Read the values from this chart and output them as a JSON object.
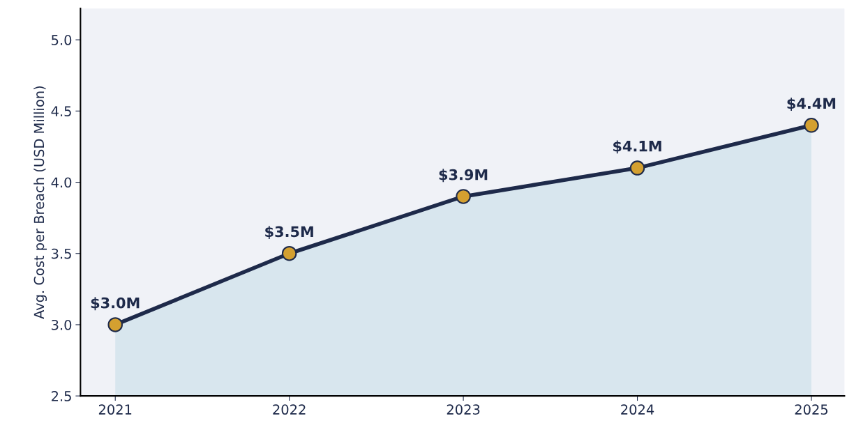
{
  "chart_data": {
    "type": "area",
    "ylabel": "Avg. Cost per Breach (USD Million)",
    "x": [
      2021,
      2022,
      2023,
      2024,
      2025
    ],
    "series": [
      {
        "color": "#1e2a4a",
        "values": [
          3.0,
          3.5,
          3.9,
          4.1,
          4.4
        ],
        "value_labels": [
          "$3.0M",
          "$3.5M",
          "$3.9M",
          "$4.1M",
          "$4.4M"
        ]
      }
    ],
    "xlim": [
      2020.8,
      2025.19
    ],
    "xticks": [
      2021,
      2022,
      2023,
      2024,
      2025
    ],
    "ylim": [
      2.5,
      5.22
    ],
    "yticks": [
      2.5,
      {
        "value": 3,
        "label": "3.0"
      },
      3.5,
      {
        "value": 4,
        "label": "4.0"
      },
      4.5,
      {
        "value": 5,
        "label": "5.0"
      }
    ],
    "marker": "circle",
    "grid": false
  }
}
